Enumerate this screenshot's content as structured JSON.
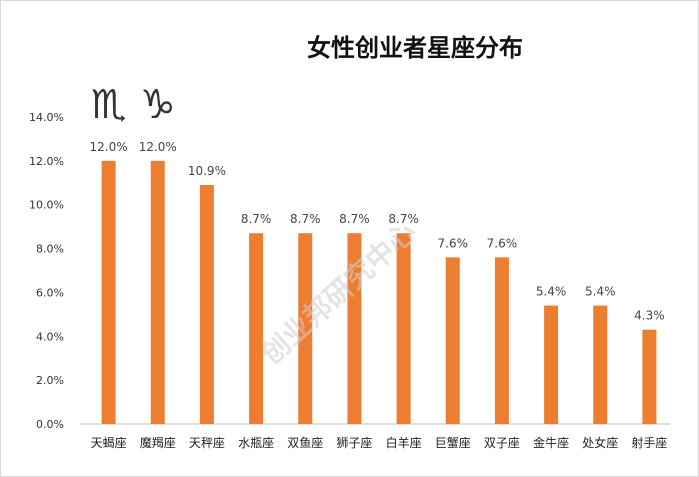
{
  "chart_data": {
    "type": "bar",
    "title": "女性创业者星座分布",
    "categories": [
      "天蝎座",
      "魔羯座",
      "天秤座",
      "水瓶座",
      "双鱼座",
      "狮子座",
      "白羊座",
      "巨蟹座",
      "双子座",
      "金牛座",
      "处女座",
      "射手座"
    ],
    "values": [
      12.0,
      12.0,
      10.9,
      8.7,
      8.7,
      8.7,
      8.7,
      7.6,
      7.6,
      5.4,
      5.4,
      4.3
    ],
    "value_labels": [
      "12.0%",
      "12.0%",
      "10.9%",
      "8.7%",
      "8.7%",
      "8.7%",
      "8.7%",
      "7.6%",
      "7.6%",
      "5.4%",
      "5.4%",
      "4.3%"
    ],
    "y_ticks": [
      "0.0%",
      "2.0%",
      "4.0%",
      "6.0%",
      "8.0%",
      "10.0%",
      "12.0%",
      "14.0%"
    ],
    "ylim": [
      0,
      14
    ],
    "xlabel": "",
    "ylabel": "",
    "grid": false,
    "bar_color": "#ED7D31",
    "annotations": {
      "zodiac_symbols": [
        "♏",
        "♑"
      ],
      "watermark": "创业邦研究中心"
    }
  }
}
